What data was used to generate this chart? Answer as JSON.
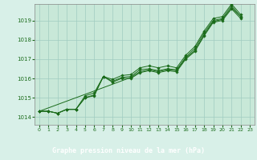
{
  "title": "Graphe pression niveau de la mer (hPa)",
  "background_color": "#d8f0e8",
  "plot_bg_color": "#c8e8d8",
  "grid_color": "#a0ccc0",
  "line_color": "#1a6b1a",
  "label_bg_color": "#2a7a2a",
  "label_text_color": "#ffffff",
  "xlim": [
    -0.5,
    23.5
  ],
  "ylim": [
    1013.6,
    1019.85
  ],
  "yticks": [
    1014,
    1015,
    1016,
    1017,
    1018,
    1019
  ],
  "xticks": [
    0,
    1,
    2,
    3,
    4,
    5,
    6,
    7,
    8,
    9,
    10,
    11,
    12,
    13,
    14,
    15,
    16,
    17,
    18,
    19,
    20,
    21,
    22,
    23
  ],
  "series": [
    [
      1014.3,
      1014.3,
      1014.2,
      1014.4,
      1014.4,
      1015.0,
      1015.15,
      1016.1,
      1015.85,
      1016.05,
      1016.1,
      1016.45,
      1016.5,
      1016.4,
      1016.5,
      1016.45,
      1017.1,
      1017.55,
      1018.35,
      1019.0,
      1019.1,
      1019.75,
      1019.2,
      null
    ],
    [
      1014.3,
      1014.3,
      1014.2,
      1014.4,
      1014.4,
      1015.1,
      1015.25,
      1016.1,
      1015.95,
      1016.15,
      1016.2,
      1016.55,
      1016.65,
      1016.55,
      1016.65,
      1016.55,
      1017.2,
      1017.65,
      1018.45,
      1019.1,
      1019.2,
      1019.85,
      1019.3,
      null
    ],
    [
      1014.3,
      null,
      null,
      null,
      null,
      null,
      null,
      null,
      null,
      null,
      1016.05,
      1016.35,
      1016.45,
      1016.35,
      1016.45,
      1016.4,
      1017.05,
      1017.45,
      1018.25,
      1018.95,
      1019.05,
      1019.65,
      1019.2,
      null
    ],
    [
      1014.3,
      1014.3,
      1014.2,
      1014.4,
      1014.4,
      1015.0,
      1015.1,
      1016.1,
      1015.8,
      1016.0,
      1016.0,
      1016.3,
      1016.4,
      1016.3,
      1016.4,
      1016.35,
      1017.0,
      1017.4,
      1018.2,
      1018.9,
      1019.0,
      1019.6,
      1019.1,
      null
    ]
  ]
}
